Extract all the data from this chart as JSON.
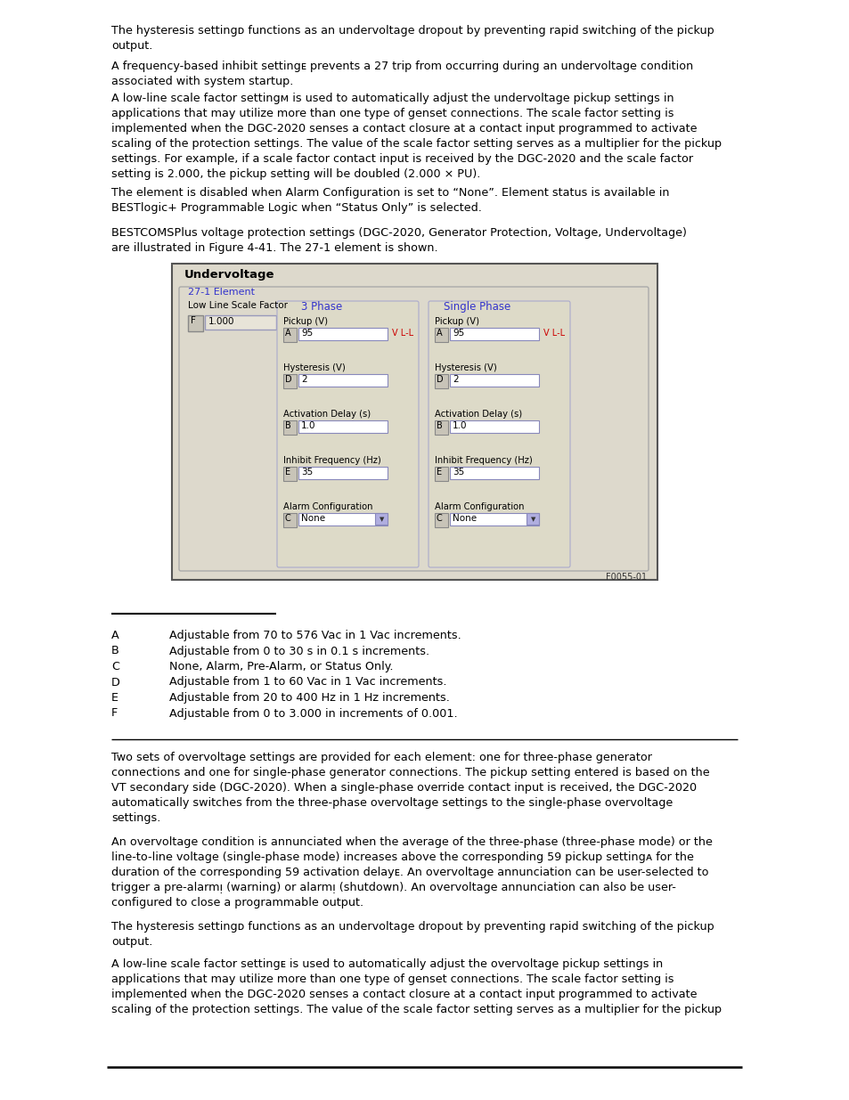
{
  "bg_color": "#ffffff",
  "text_color": "#000000",
  "box_bg": "#ddd9cc",
  "box_border": "#888888",
  "box_title": "Undervoltage",
  "box_subtitle": "27-1 Element",
  "box_label_color": "#3333cc",
  "box_ref": "F0055-01",
  "footnotes": [
    {
      "letter": "A",
      "text": "Adjustable from 70 to 576 Vac in 1 Vac increments."
    },
    {
      "letter": "B",
      "text": "Adjustable from 0 to 30 s in 0.1 s increments."
    },
    {
      "letter": "C",
      "text": "None, Alarm, Pre-Alarm, or Status Only."
    },
    {
      "letter": "D",
      "text": "Adjustable from 1 to 60 Vac in 1 Vac increments."
    },
    {
      "letter": "E",
      "text": "Adjustable from 20 to 400 Hz in 1 Hz increments."
    },
    {
      "letter": "F",
      "text": "Adjustable from 0 to 3.000 in increments of 0.001."
    }
  ]
}
